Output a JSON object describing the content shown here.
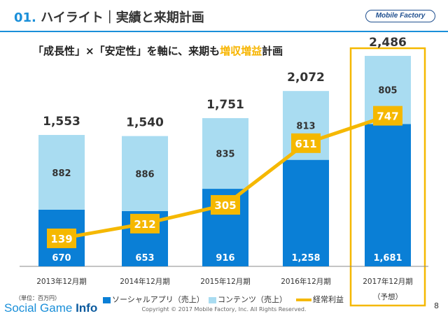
{
  "header": {
    "number": "01.",
    "title": "ハイライト｜実績と来期計画",
    "logo": "Mobile Factory",
    "accent_color": "#1a8fd9"
  },
  "subtitle": {
    "part1": "「成長性」×「安定性」を軸に、来期も",
    "highlight": "増収増益",
    "part2": "計画"
  },
  "chart_data": {
    "type": "bar",
    "stacked": true,
    "categories": [
      "2013年12月期",
      "2014年12月期",
      "2015年12月期",
      "2016年12月期",
      "2017年12月期"
    ],
    "forecast_note": "（予想）",
    "series": [
      {
        "name": "ソーシャルアプリ（売上）",
        "color": "#0a7fd6",
        "values": [
          670,
          653,
          916,
          1258,
          1681
        ],
        "labels": [
          "670",
          "653",
          "916",
          "1,258",
          "1,681"
        ]
      },
      {
        "name": "コンテンツ（売上）",
        "color": "#a9dcf1",
        "values": [
          882,
          886,
          835,
          813,
          805
        ],
        "labels": [
          "882",
          "886",
          "835",
          "813",
          "805"
        ]
      }
    ],
    "totals": [
      1553,
      1540,
      1751,
      2072,
      2486
    ],
    "total_labels": [
      "1,553",
      "1,540",
      "1,751",
      "2,072",
      "2,486"
    ],
    "line": {
      "name": "経常利益",
      "color": "#f5b800",
      "values": [
        139,
        212,
        305,
        611,
        747
      ],
      "labels": [
        "139",
        "212",
        "305",
        "611",
        "747"
      ]
    },
    "ylim": [
      0,
      2700
    ],
    "grid": false,
    "legend_position": "bottom"
  },
  "footer": {
    "unit": "（単位：百万円）",
    "brand_a": "Social Game",
    "brand_b": "Info",
    "copyright": "Copyright © 2017 Mobile Factory, Inc. All Rights Reserved.",
    "page": "8"
  }
}
